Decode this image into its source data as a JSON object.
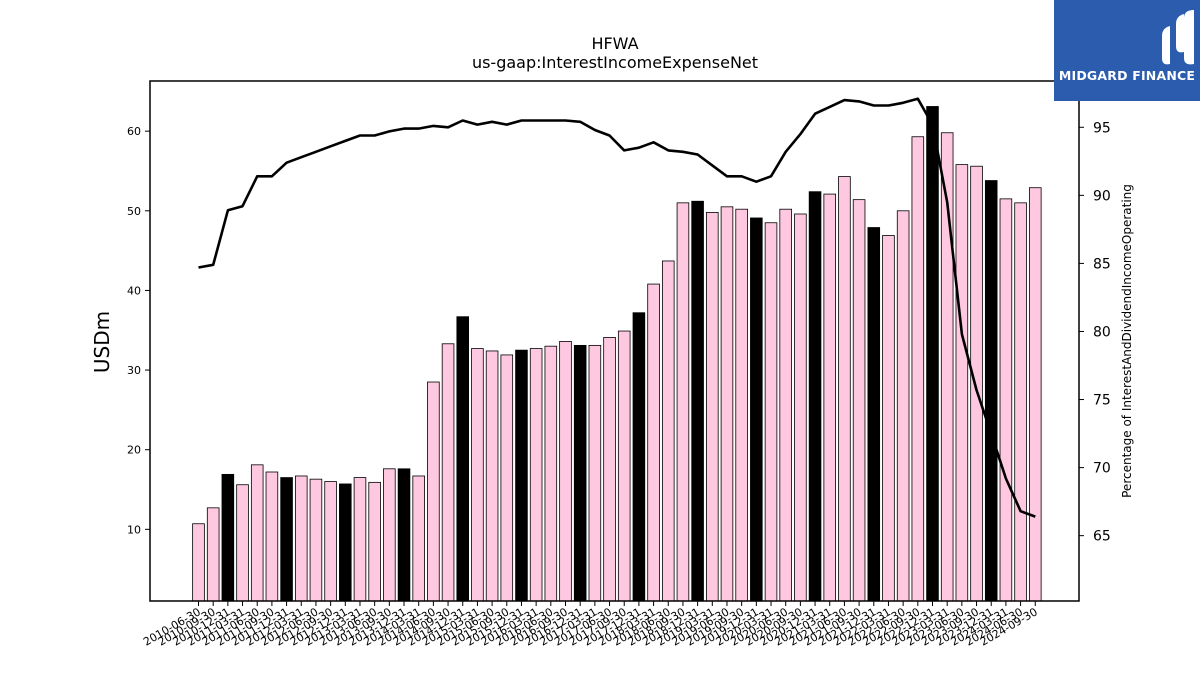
{
  "chart_data": {
    "type": "bar",
    "title": "HFWA",
    "subtitle": "us-gaap:InterestIncomeExpenseNet",
    "ylabel": "USDm",
    "y2label": "Percentage of InterestAndDividendIncomeOperating",
    "ylim": [
      1,
      66.3
    ],
    "y2lim": [
      60.2,
      98.4
    ],
    "yticks": [
      10,
      20,
      30,
      40,
      50,
      60
    ],
    "y2ticks": [
      65,
      70,
      75,
      80,
      85,
      90,
      95
    ],
    "grid": false,
    "legend": "none",
    "colors": {
      "bar": "#ffc8e1",
      "bar_highlight": "#000000",
      "line": "#000000"
    },
    "categories": [
      "2010-06-30",
      "2010-09-30",
      "2010-12-31",
      "2011-03-31",
      "2011-06-30",
      "2011-09-30",
      "2011-12-31",
      "2012-03-31",
      "2012-06-30",
      "2012-09-30",
      "2012-12-31",
      "2013-03-31",
      "2013-06-30",
      "2013-09-30",
      "2013-12-31",
      "2014-03-31",
      "2014-06-30",
      "2014-09-30",
      "2014-12-31",
      "2015-03-31",
      "2015-06-30",
      "2015-09-30",
      "2015-12-31",
      "2016-03-31",
      "2016-06-30",
      "2016-09-30",
      "2016-12-31",
      "2017-03-31",
      "2017-06-30",
      "2017-09-30",
      "2017-12-31",
      "2018-03-31",
      "2018-06-30",
      "2018-09-30",
      "2018-12-31",
      "2019-03-31",
      "2019-06-30",
      "2019-09-30",
      "2019-12-31",
      "2020-03-31",
      "2020-06-30",
      "2020-09-30",
      "2020-12-31",
      "2021-03-31",
      "2021-06-30",
      "2021-09-30",
      "2021-12-31",
      "2022-03-31",
      "2022-06-30",
      "2022-09-30",
      "2022-12-31",
      "2023-03-31",
      "2023-06-30",
      "2023-09-30",
      "2023-12-31",
      "2024-03-31",
      "2024-06-30",
      "2024-09-30"
    ],
    "series": [
      {
        "kind": "bar",
        "values": [
          10.7,
          12.7,
          16.9,
          15.6,
          18.1,
          17.2,
          16.5,
          16.7,
          16.3,
          16.0,
          15.7,
          16.5,
          15.9,
          17.6,
          17.6,
          16.7,
          28.5,
          33.3,
          36.7,
          32.7,
          32.4,
          31.9,
          32.5,
          32.7,
          33.0,
          33.6,
          33.1,
          33.1,
          34.1,
          34.9,
          37.2,
          40.8,
          43.7,
          51.0,
          51.2,
          49.8,
          50.5,
          50.2,
          49.1,
          48.5,
          50.2,
          49.6,
          52.4,
          52.1,
          54.3,
          51.4,
          47.9,
          46.9,
          50.0,
          59.3,
          63.1,
          59.8,
          55.8,
          55.6,
          53.8,
          51.5,
          51.0,
          52.9
        ],
        "highlight": [
          false,
          false,
          true,
          false,
          false,
          false,
          true,
          false,
          false,
          false,
          true,
          false,
          false,
          false,
          true,
          false,
          false,
          false,
          true,
          false,
          false,
          false,
          true,
          false,
          false,
          false,
          true,
          false,
          false,
          false,
          true,
          false,
          false,
          false,
          true,
          false,
          false,
          false,
          true,
          false,
          false,
          false,
          true,
          false,
          false,
          false,
          true,
          false,
          false,
          false,
          true,
          false,
          false,
          false,
          true,
          false,
          false,
          false
        ]
      },
      {
        "kind": "line",
        "axis": "right",
        "values": [
          84.7,
          84.9,
          88.9,
          89.2,
          91.4,
          91.4,
          92.4,
          92.8,
          93.2,
          93.6,
          94.0,
          94.4,
          94.4,
          94.7,
          94.9,
          94.9,
          95.1,
          95.0,
          95.5,
          95.2,
          95.4,
          95.2,
          95.5,
          95.5,
          95.5,
          95.5,
          95.4,
          94.8,
          94.4,
          93.3,
          93.5,
          93.9,
          93.3,
          93.2,
          93.0,
          92.2,
          91.4,
          91.4,
          91.0,
          91.4,
          93.2,
          94.5,
          96.0,
          96.5,
          97.0,
          96.9,
          96.6,
          96.6,
          96.8,
          97.1,
          95.2,
          89.5,
          79.8,
          75.7,
          72.5,
          69.2,
          66.8,
          66.4
        ]
      }
    ]
  },
  "brand": {
    "name": "MIDGARD FINANCE",
    "logo": "midgard-logo-icon"
  }
}
